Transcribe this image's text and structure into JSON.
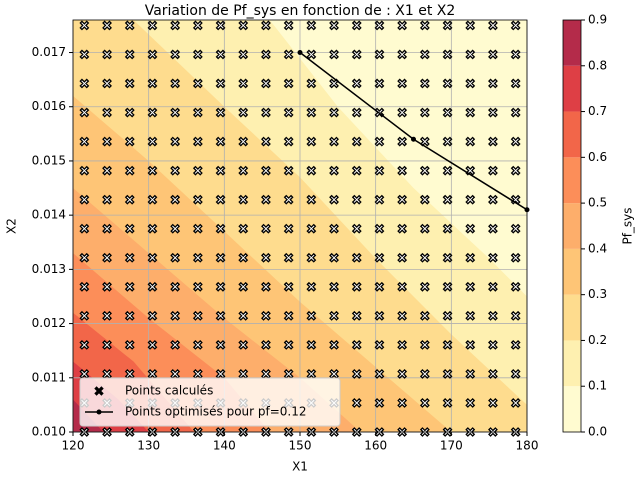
{
  "chart_data": {
    "type": "contour",
    "title": "Variation de Pf_sys en fonction de : X1 et X2",
    "xlabel": "X1",
    "ylabel": "X2",
    "colorbar_label": "Pf_sys",
    "xlim": [
      120,
      180
    ],
    "xticks": [
      120,
      130,
      140,
      150,
      160,
      170,
      180
    ],
    "ylim": [
      0.01,
      0.0176
    ],
    "yticks": [
      {
        "value": 0.01,
        "label": "0.010"
      },
      0.011,
      0.012,
      0.013,
      0.014,
      0.015,
      0.016,
      0.017
    ],
    "grid": true,
    "legend": "lower left",
    "levels": [
      0,
      0.1,
      0.2,
      0.3,
      0.4,
      0.5,
      0.6,
      0.7,
      0.8,
      0.9
    ],
    "colors": [
      "#fffbd0",
      "#fef0b0",
      "#fedc8e",
      "#fec576",
      "#fdae6b",
      "#fc8e59",
      "#f26649",
      "#de3f45",
      "#b42b4a"
    ],
    "colorbar_ticks": [
      {
        "value": 0,
        "label": "0.0"
      },
      0.1,
      0.2,
      0.3,
      0.4,
      0.5,
      0.6,
      0.7,
      0.8,
      0.9
    ],
    "contours": [
      {
        "level": 0.1,
        "x": [
          146,
          155,
          165,
          175,
          180
        ],
        "y": [
          0.0176,
          0.016,
          0.0145,
          0.0132,
          0.0125
        ]
      },
      {
        "level": 0.2,
        "x": [
          128,
          140,
          150,
          160,
          170,
          180
        ],
        "y": [
          0.0176,
          0.016,
          0.0147,
          0.0132,
          0.0118,
          0.0105
        ]
      },
      {
        "level": 0.3,
        "x": [
          120,
          130,
          140,
          150,
          160,
          170
        ],
        "y": [
          0.0162,
          0.015,
          0.0137,
          0.0124,
          0.0112,
          0.01
        ]
      },
      {
        "level": 0.4,
        "x": [
          120,
          130,
          140,
          150,
          158
        ],
        "y": [
          0.0145,
          0.0133,
          0.0121,
          0.011,
          0.01
        ]
      },
      {
        "level": 0.5,
        "x": [
          120,
          130,
          140,
          146
        ],
        "y": [
          0.0133,
          0.0121,
          0.011,
          0.01
        ]
      },
      {
        "level": 0.6,
        "x": [
          120,
          128,
          136
        ],
        "y": [
          0.0122,
          0.0113,
          0.01
        ]
      },
      {
        "level": 0.7,
        "x": [
          120,
          126,
          130
        ],
        "y": [
          0.0113,
          0.0106,
          0.01
        ]
      },
      {
        "level": 0.8,
        "x": [
          120,
          124
        ],
        "y": [
          0.0106,
          0.01
        ]
      }
    ],
    "scatter": {
      "name": "Points calculés",
      "x": [
        121.5,
        124.5,
        127.5,
        130.5,
        133.5,
        136.5,
        139.5,
        142.5,
        145.5,
        148.5,
        151.5,
        154.5,
        157.5,
        160.5,
        163.5,
        166.5,
        169.5,
        172.5,
        175.5,
        178.5
      ],
      "y": [
        0.01,
        0.010536,
        0.011071,
        0.011607,
        0.012143,
        0.012679,
        0.013214,
        0.01375,
        0.014286,
        0.014821,
        0.015357,
        0.015893,
        0.016429,
        0.016964,
        0.0175
      ]
    },
    "line": {
      "name": "Points optimisés pour pf=0.12",
      "color": "#000000",
      "x": [
        150,
        165,
        180
      ],
      "y": [
        0.017,
        0.0154,
        0.0141
      ]
    }
  }
}
